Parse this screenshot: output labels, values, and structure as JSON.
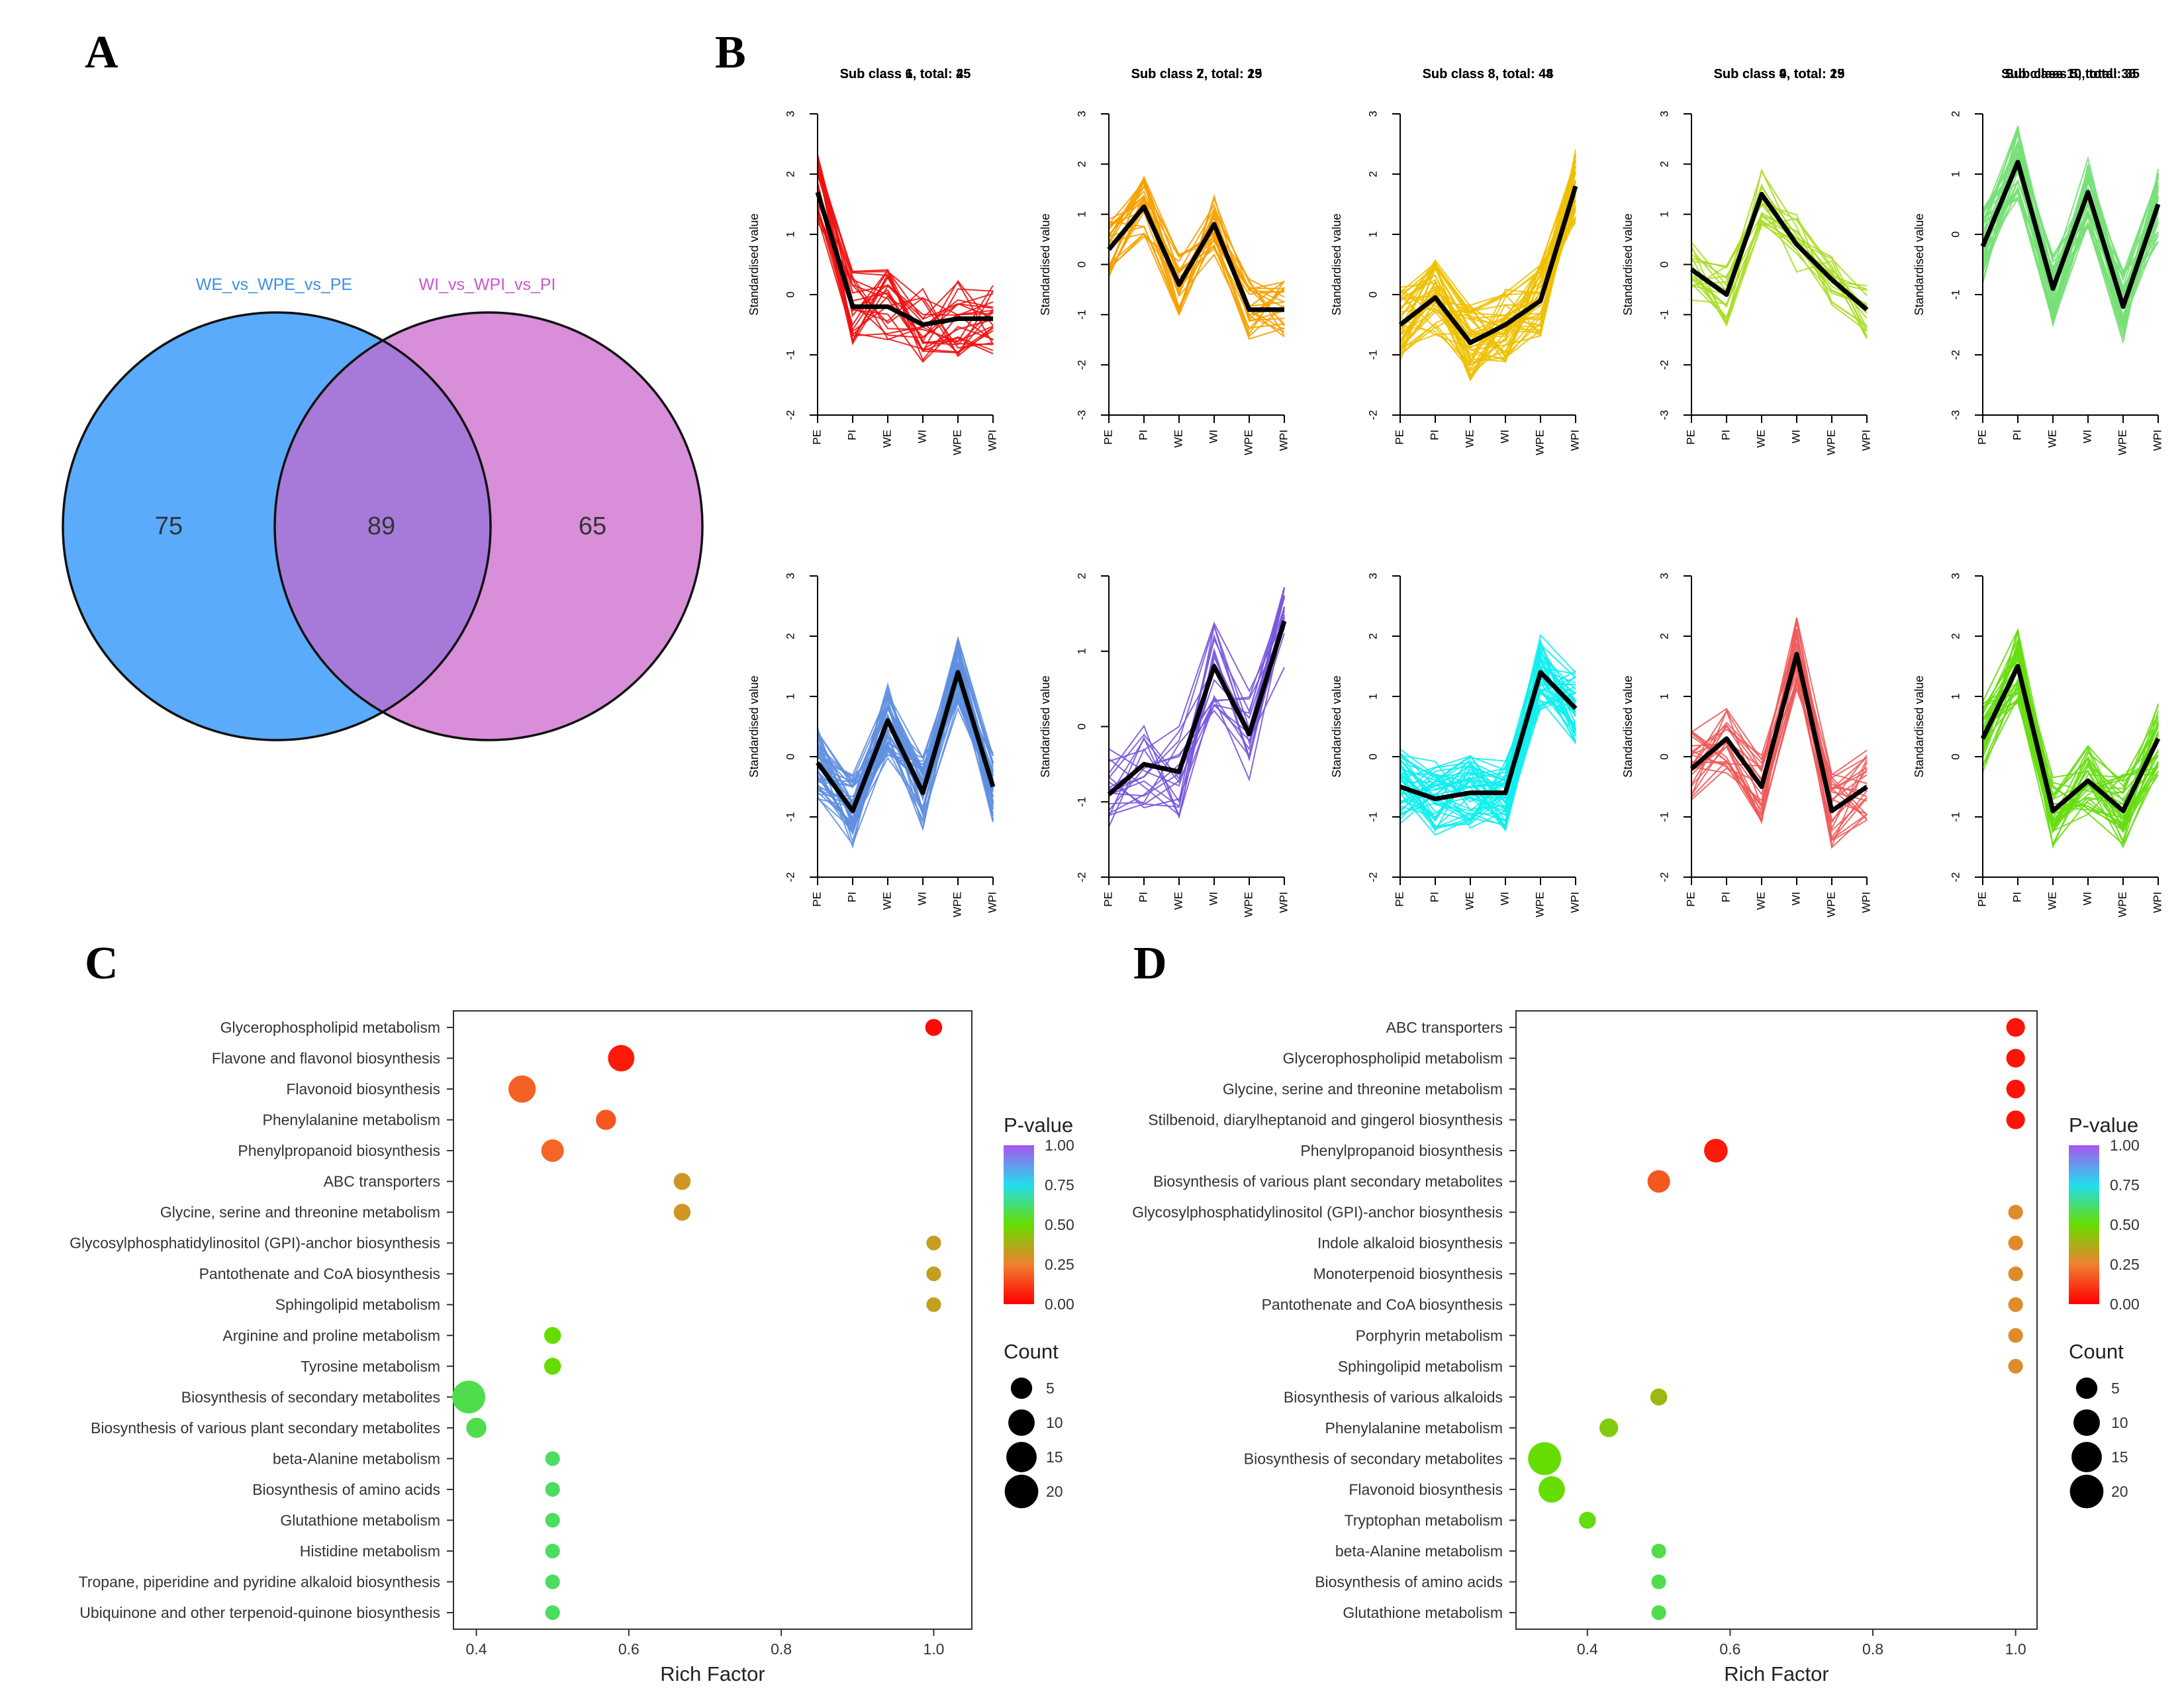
{
  "panel_letters": [
    "A",
    "B",
    "C",
    "D"
  ],
  "chart_data": [
    {
      "panel": "A",
      "type": "venn",
      "sets": [
        {
          "name": "WE_vs_WPE_vs_PE",
          "color": "#5aabfc",
          "label_color": "#3b8fe6"
        },
        {
          "name": "WI_vs_WPI_vs_PI",
          "color": "#d98ed9",
          "label_color": "#cc55cc"
        }
      ],
      "counts": {
        "left_only": 75,
        "intersection": 89,
        "right_only": 65
      },
      "intersection_color": "#a77ad9"
    },
    {
      "panel": "B",
      "type": "line",
      "x": [
        "PE",
        "PI",
        "WE",
        "WI",
        "WPE",
        "WPI"
      ],
      "ylabel": "Standardised value",
      "subclasses": [
        {
          "title": "Sub class 1, total: 25",
          "color": "#ee1111",
          "ylim": [
            -2,
            3
          ],
          "mean": [
            1.7,
            -0.2,
            -0.2,
            -0.5,
            -0.4,
            -0.4
          ],
          "n": 25
        },
        {
          "title": "Sub class 2, total: 25",
          "color": "#f5a000",
          "ylim": [
            -3,
            3
          ],
          "mean": [
            0.3,
            1.15,
            -0.4,
            0.8,
            -0.9,
            -0.9
          ],
          "n": 25
        },
        {
          "title": "Sub class 3, total: 44",
          "color": "#eec000",
          "ylim": [
            -2,
            3
          ],
          "mean": [
            -0.5,
            -0.05,
            -0.8,
            -0.5,
            -0.1,
            1.8
          ],
          "n": 44
        },
        {
          "title": "Sub class 4, total: 19",
          "color": "#a8dd22",
          "ylim": [
            -3,
            3
          ],
          "mean": [
            -0.1,
            -0.6,
            1.4,
            0.4,
            -0.3,
            -0.9
          ],
          "n": 19
        },
        {
          "title": "Sub class 5, total: 38",
          "color": "#77e077",
          "ylim": [
            -3,
            2
          ],
          "mean": [
            -0.2,
            1.2,
            -0.9,
            0.7,
            -1.2,
            0.5
          ],
          "n": 38
        },
        {
          "title": "Sub class 6, total: 45",
          "color": "#5f8fe0",
          "ylim": [
            -2,
            3
          ],
          "mean": [
            -0.1,
            -0.9,
            0.6,
            -0.6,
            1.4,
            -0.5
          ],
          "n": 45
        },
        {
          "title": "Sub class 7, total: 19",
          "color": "#7755dd",
          "ylim": [
            -2,
            2
          ],
          "mean": [
            -0.9,
            -0.5,
            -0.6,
            0.8,
            -0.1,
            1.4
          ],
          "n": 19
        },
        {
          "title": "Sub class 8, total: 48",
          "color": "#11eeee",
          "ylim": [
            -2,
            3
          ],
          "mean": [
            -0.5,
            -0.7,
            -0.6,
            -0.6,
            1.4,
            0.8
          ],
          "n": 48
        },
        {
          "title": "Sub class 9, total: 25",
          "color": "#ee5a5a",
          "ylim": [
            -2,
            3
          ],
          "mean": [
            -0.2,
            0.3,
            -0.5,
            1.7,
            -0.9,
            -0.5
          ],
          "n": 25
        },
        {
          "title": "Sub class 10, total: 35",
          "color": "#66dd11",
          "ylim": [
            -2,
            3
          ],
          "mean": [
            0.3,
            1.5,
            -0.9,
            -0.4,
            -0.9,
            0.3
          ],
          "n": 35
        }
      ]
    },
    {
      "panel": "C",
      "type": "scatter",
      "xlabel": "Rich Factor",
      "xlim": [
        0.37,
        1.05
      ],
      "xticks": [
        0.4,
        0.6,
        0.8,
        1.0
      ],
      "xtick_labels": [
        "0.4",
        "0.6",
        "0.8",
        "1.0"
      ],
      "pathways": [
        {
          "name": "Glycerophospholipid metabolism",
          "rich": 1.0,
          "p": 0.02,
          "count": 2
        },
        {
          "name": "Flavone and flavonol biosynthesis",
          "rich": 0.59,
          "p": 0.05,
          "count": 10
        },
        {
          "name": "Flavonoid biosynthesis",
          "rich": 0.46,
          "p": 0.19,
          "count": 11
        },
        {
          "name": "Phenylalanine metabolism",
          "rich": 0.57,
          "p": 0.17,
          "count": 4
        },
        {
          "name": "Phenylpropanoid biosynthesis",
          "rich": 0.5,
          "p": 0.2,
          "count": 6
        },
        {
          "name": "ABC transporters",
          "rich": 0.67,
          "p": 0.31,
          "count": 2
        },
        {
          "name": "Glycine, serine and threonine metabolism",
          "rich": 0.67,
          "p": 0.31,
          "count": 2
        },
        {
          "name": "Glycosylphosphatidylinositol (GPI)-anchor biosynthesis",
          "rich": 1.0,
          "p": 0.33,
          "count": 1
        },
        {
          "name": "Pantothenate and CoA biosynthesis",
          "rich": 1.0,
          "p": 0.33,
          "count": 1
        },
        {
          "name": "Sphingolipid metabolism",
          "rich": 1.0,
          "p": 0.33,
          "count": 1
        },
        {
          "name": "Arginine and proline metabolism",
          "rich": 0.5,
          "p": 0.5,
          "count": 2
        },
        {
          "name": "Tyrosine metabolism",
          "rich": 0.5,
          "p": 0.5,
          "count": 2
        },
        {
          "name": "Biosynthesis of secondary metabolites",
          "rich": 0.39,
          "p": 0.58,
          "count": 19
        },
        {
          "name": "Biosynthesis of various plant secondary metabolites",
          "rich": 0.4,
          "p": 0.58,
          "count": 4
        },
        {
          "name": "beta-Alanine metabolism",
          "rich": 0.5,
          "p": 0.6,
          "count": 1
        },
        {
          "name": "Biosynthesis of amino acids",
          "rich": 0.5,
          "p": 0.6,
          "count": 1
        },
        {
          "name": "Glutathione metabolism",
          "rich": 0.5,
          "p": 0.6,
          "count": 1
        },
        {
          "name": "Histidine metabolism",
          "rich": 0.5,
          "p": 0.6,
          "count": 1
        },
        {
          "name": "Tropane, piperidine and pyridine alkaloid biosynthesis",
          "rich": 0.5,
          "p": 0.6,
          "count": 1
        },
        {
          "name": "Ubiquinone and other terpenoid-quinone biosynthesis",
          "rich": 0.5,
          "p": 0.6,
          "count": 1
        }
      ],
      "legend": {
        "p_title": "P-value",
        "p_ticks": [
          "1.00",
          "0.75",
          "0.50",
          "0.25",
          "0.00"
        ],
        "count_title": "Count",
        "count_ticks": [
          5,
          10,
          15,
          20
        ]
      }
    },
    {
      "panel": "D",
      "type": "scatter",
      "xlabel": "Rich Factor",
      "xlim": [
        0.3,
        1.03
      ],
      "xticks": [
        0.4,
        0.6,
        0.8,
        1.0
      ],
      "xtick_labels": [
        "0.4",
        "0.6",
        "0.8",
        "1.0"
      ],
      "pathways": [
        {
          "name": "ABC transporters",
          "rich": 1.0,
          "p": 0.04,
          "count": 3
        },
        {
          "name": "Glycerophospholipid metabolism",
          "rich": 1.0,
          "p": 0.04,
          "count": 3
        },
        {
          "name": "Glycine, serine and threonine metabolism",
          "rich": 1.0,
          "p": 0.04,
          "count": 3
        },
        {
          "name": "Stilbenoid, diarylheptanoid and gingerol biosynthesis",
          "rich": 1.0,
          "p": 0.04,
          "count": 3
        },
        {
          "name": "Phenylpropanoid biosynthesis",
          "rich": 0.58,
          "p": 0.05,
          "count": 7
        },
        {
          "name": "Biosynthesis of various plant secondary metabolites",
          "rich": 0.5,
          "p": 0.17,
          "count": 6
        },
        {
          "name": "Glycosylphosphatidylinositol (GPI)-anchor biosynthesis",
          "rich": 1.0,
          "p": 0.28,
          "count": 1
        },
        {
          "name": "Indole alkaloid biosynthesis",
          "rich": 1.0,
          "p": 0.28,
          "count": 1
        },
        {
          "name": "Monoterpenoid biosynthesis",
          "rich": 1.0,
          "p": 0.28,
          "count": 1
        },
        {
          "name": "Pantothenate and CoA biosynthesis",
          "rich": 1.0,
          "p": 0.28,
          "count": 1
        },
        {
          "name": "Porphyrin metabolism",
          "rich": 1.0,
          "p": 0.28,
          "count": 1
        },
        {
          "name": "Sphingolipid metabolism",
          "rich": 1.0,
          "p": 0.28,
          "count": 1
        },
        {
          "name": "Biosynthesis of various alkaloids",
          "rich": 0.5,
          "p": 0.4,
          "count": 2
        },
        {
          "name": "Phenylalanine metabolism",
          "rich": 0.43,
          "p": 0.45,
          "count": 3
        },
        {
          "name": "Biosynthesis of secondary metabolites",
          "rich": 0.34,
          "p": 0.5,
          "count": 19
        },
        {
          "name": "Flavonoid biosynthesis",
          "rich": 0.35,
          "p": 0.5,
          "count": 10
        },
        {
          "name": "Tryptophan metabolism",
          "rich": 0.4,
          "p": 0.52,
          "count": 2
        },
        {
          "name": "beta-Alanine metabolism",
          "rich": 0.5,
          "p": 0.58,
          "count": 1
        },
        {
          "name": "Biosynthesis of amino acids",
          "rich": 0.5,
          "p": 0.58,
          "count": 1
        },
        {
          "name": "Glutathione metabolism",
          "rich": 0.5,
          "p": 0.58,
          "count": 1
        }
      ],
      "legend": {
        "p_title": "P-value",
        "p_ticks": [
          "1.00",
          "0.75",
          "0.50",
          "0.25",
          "0.00"
        ],
        "count_title": "Count",
        "count_ticks": [
          5,
          10,
          15,
          20
        ]
      }
    }
  ]
}
